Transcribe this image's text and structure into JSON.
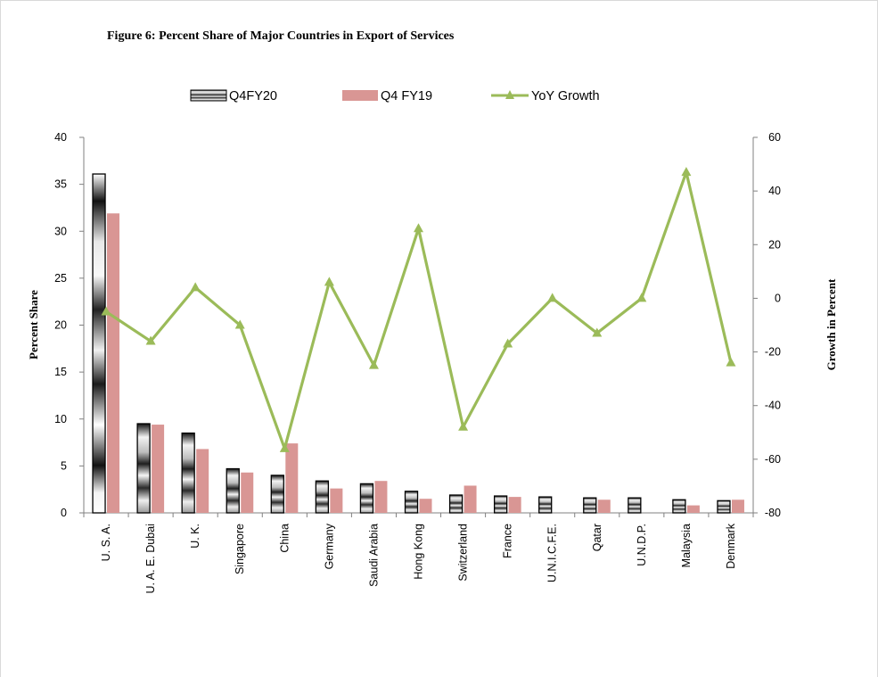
{
  "chart_data": {
    "type": "bar",
    "title": "Figure 6: Percent Share of Major Countries in Export of Services",
    "categories": [
      "U. S. A.",
      "U. A. E. Dubai",
      "U. K.",
      "Singapore",
      "China",
      "Germany",
      "Saudi Arabia",
      "Hong Kong",
      "Switzerland",
      "France",
      "U.N.I.C.F.E.",
      "Qatar",
      "U.N.D.P.",
      "Malaysia",
      "Denmark"
    ],
    "series": [
      {
        "name": "Q4FY20",
        "type": "bar",
        "axis": "left",
        "values": [
          36.1,
          9.5,
          8.5,
          4.7,
          4.0,
          3.4,
          3.1,
          2.3,
          1.9,
          1.8,
          1.7,
          1.6,
          1.6,
          1.4,
          1.3
        ]
      },
      {
        "name": "Q4 FY19",
        "type": "bar",
        "axis": "left",
        "values": [
          31.9,
          9.4,
          6.8,
          4.3,
          7.4,
          2.6,
          3.4,
          1.5,
          2.9,
          1.7,
          0,
          1.4,
          0,
          0.8,
          1.4
        ]
      },
      {
        "name": "YoY Growth",
        "type": "line",
        "axis": "right",
        "values": [
          -5,
          -16,
          4,
          -10,
          -56,
          6,
          -25,
          26,
          -48,
          -17,
          0,
          -13,
          0,
          47,
          -24
        ]
      }
    ],
    "ylabel": "Percent Share",
    "y2label": "Growth in Percent",
    "ylim": [
      0,
      40
    ],
    "y2lim": [
      -80,
      60
    ],
    "yticks": [
      0,
      5,
      10,
      15,
      20,
      25,
      30,
      35,
      40
    ],
    "y2ticks": [
      -80,
      -60,
      -40,
      -20,
      0,
      20,
      40,
      60
    ],
    "legend_position": "top",
    "grid": false,
    "colors": {
      "q4fy20_dark": "#1a1a1a",
      "q4fy20_light": "#f2f2f2",
      "q4fy19": "#d99694",
      "yoy": "#9bbb59",
      "axis": "#808080"
    }
  }
}
